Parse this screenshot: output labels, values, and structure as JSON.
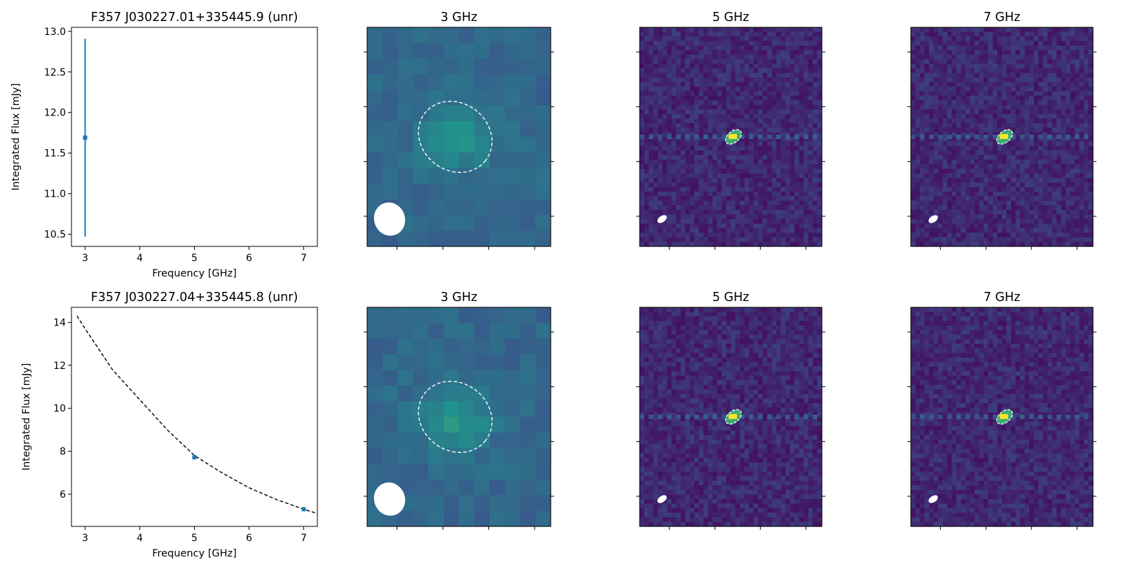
{
  "colors": {
    "data_point": "#1f77b4",
    "fit_line": "#000000",
    "contour": "#ffffff",
    "beam": "#ffffff",
    "cmap_low": "#440154",
    "cmap_mid": "#21918c",
    "cmap_high": "#fde725"
  },
  "chart_data": [
    {
      "type": "scatter",
      "title": "F357 J030227.01+335445.9 (unr)",
      "xlabel": "Frequency [GHz]",
      "ylabel": "Integrated Flux [mJy]",
      "xlim": [
        2.75,
        7.25
      ],
      "ylim": [
        10.35,
        13.05
      ],
      "xticks": [
        "3",
        "4",
        "5",
        "6",
        "7"
      ],
      "yticks": [
        "10.5",
        "11.0",
        "11.5",
        "12.0",
        "12.5",
        "13.0"
      ],
      "points": [
        {
          "x": 3,
          "y": 11.69,
          "err": 1.22
        }
      ],
      "fit_line": false
    },
    {
      "type": "heatmap",
      "title": "3 GHz",
      "tick_labels": false
    },
    {
      "type": "heatmap",
      "title": "5 GHz",
      "tick_labels": false
    },
    {
      "type": "heatmap",
      "title": "7 GHz",
      "tick_labels": false
    },
    {
      "type": "scatter",
      "title": "F357 J030227.04+335445.8 (unr)",
      "xlabel": "Frequency [GHz]",
      "ylabel": "Integrated Flux [mJy]",
      "xlim": [
        2.75,
        7.25
      ],
      "ylim": [
        4.5,
        14.7
      ],
      "xticks": [
        "3",
        "4",
        "5",
        "6",
        "7"
      ],
      "yticks": [
        "6",
        "8",
        "10",
        "12",
        "14"
      ],
      "points": [
        {
          "x": 5,
          "y": 7.72,
          "err": 0.1
        },
        {
          "x": 7,
          "y": 5.3,
          "err": 0.08
        }
      ],
      "fit_line": true,
      "fit_curve": [
        [
          2.85,
          14.3
        ],
        [
          3.0,
          13.7
        ],
        [
          3.5,
          11.8
        ],
        [
          4.0,
          10.4
        ],
        [
          4.5,
          9.0
        ],
        [
          5.0,
          7.8
        ],
        [
          5.5,
          7.0
        ],
        [
          6.0,
          6.3
        ],
        [
          6.5,
          5.75
        ],
        [
          7.0,
          5.3
        ],
        [
          7.25,
          5.1
        ]
      ]
    },
    {
      "type": "heatmap",
      "title": "3 GHz",
      "tick_labels": false
    },
    {
      "type": "heatmap",
      "title": "5 GHz",
      "tick_labels": false
    },
    {
      "type": "heatmap",
      "title": "7 GHz",
      "tick_labels": false
    }
  ]
}
